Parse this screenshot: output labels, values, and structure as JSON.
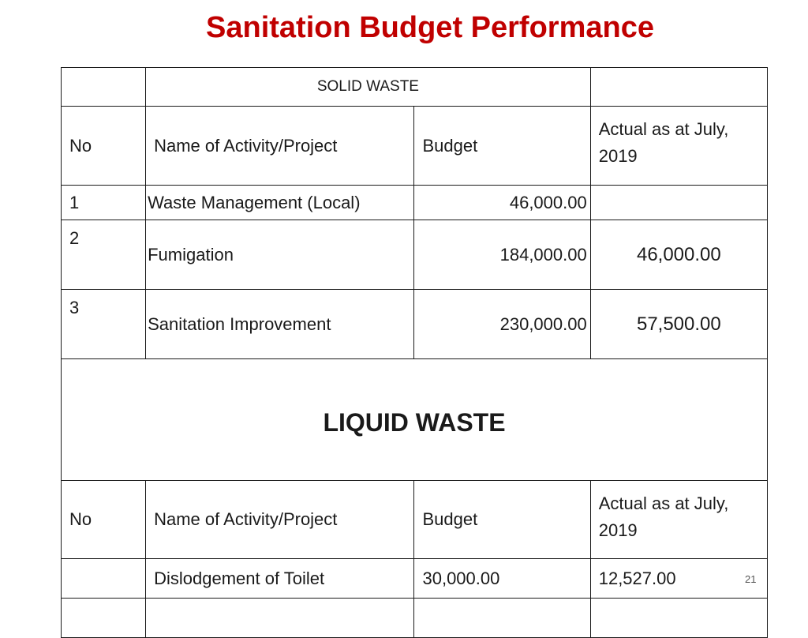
{
  "title": "Sanitation Budget Performance",
  "solid_section": {
    "label": "SOLID WASTE",
    "headers": {
      "no": "No",
      "name": "Name of Activity/Project",
      "budget": "Budget",
      "actual": "Actual as at July, 2019"
    },
    "rows": [
      {
        "no": "1",
        "name": "Waste Management (Local)",
        "budget": "46,000.00",
        "actual": ""
      },
      {
        "no": "2",
        "name": "Fumigation",
        "budget": "184,000.00",
        "actual": "46,000.00"
      },
      {
        "no": "3",
        "name": "Sanitation Improvement",
        "budget": "230,000.00",
        "actual": "57,500.00"
      }
    ]
  },
  "liquid_section": {
    "label": "LIQUID WASTE",
    "headers": {
      "no": "No",
      "name": "Name of Activity/Project",
      "budget": "Budget",
      "actual": "Actual as at July, 2019"
    },
    "rows": [
      {
        "no": "",
        "name": "Dislodgement of Toilet",
        "budget": "30,000.00",
        "actual": "12,527.00"
      }
    ]
  },
  "page_number": "21"
}
